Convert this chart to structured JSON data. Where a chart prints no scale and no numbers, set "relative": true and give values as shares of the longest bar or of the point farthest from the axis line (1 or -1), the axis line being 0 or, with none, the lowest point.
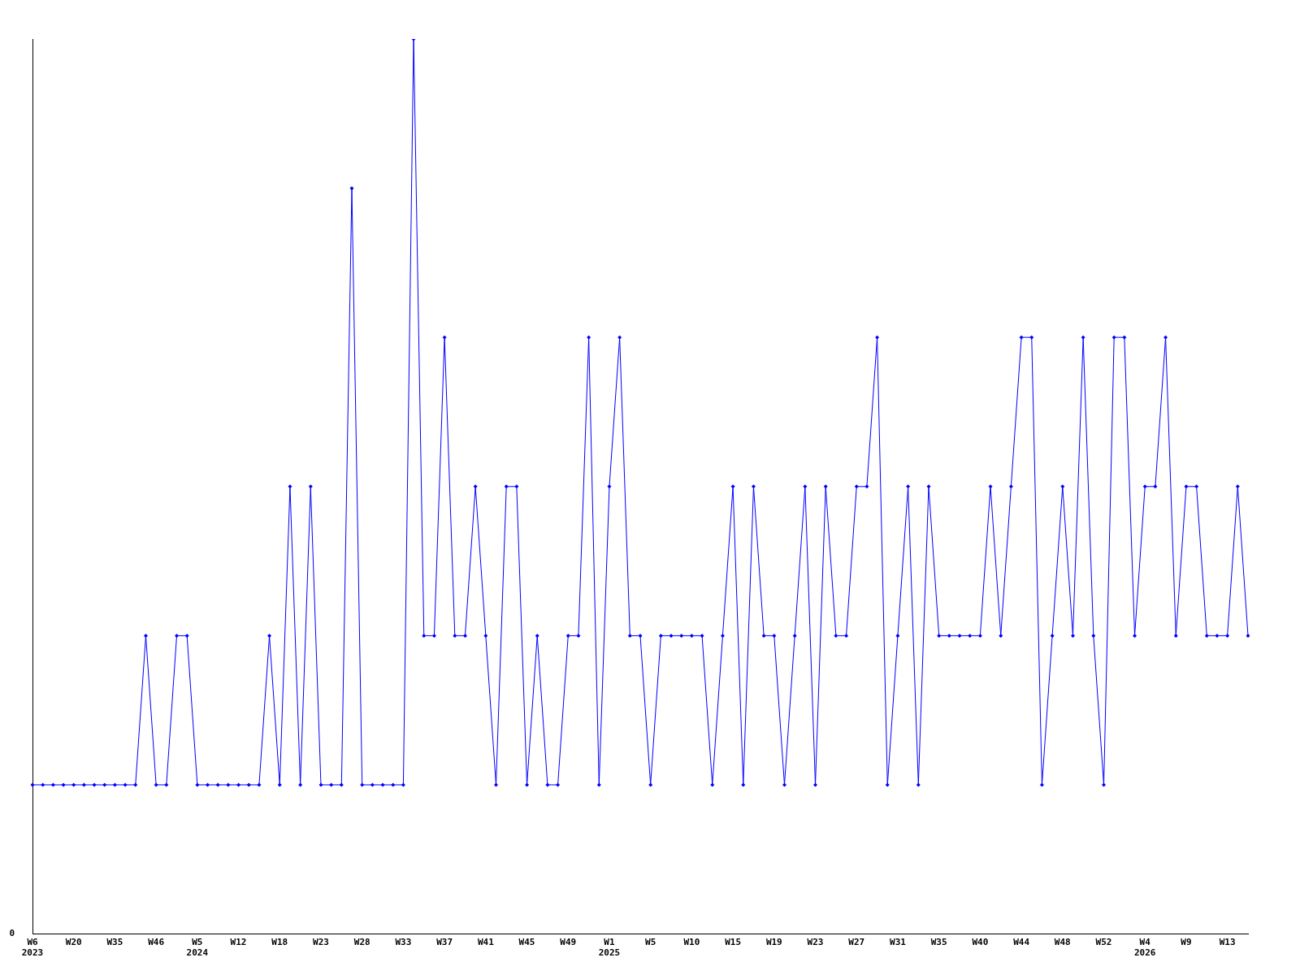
{
  "chart_data": {
    "type": "line",
    "relative": true,
    "categories": [
      "W6\n2023",
      null,
      null,
      null,
      "W20",
      null,
      null,
      null,
      "W35",
      null,
      null,
      null,
      "W46",
      null,
      null,
      null,
      "W5\n2024",
      null,
      null,
      null,
      "W12",
      null,
      null,
      null,
      "W18",
      null,
      null,
      null,
      "W23",
      null,
      null,
      null,
      "W28",
      null,
      null,
      null,
      "W33",
      null,
      null,
      null,
      "W37",
      null,
      null,
      null,
      "W41",
      null,
      null,
      null,
      "W45",
      null,
      null,
      null,
      "W49",
      null,
      null,
      null,
      "W1\n2025",
      null,
      null,
      null,
      "W5",
      null,
      null,
      null,
      "W10",
      null,
      null,
      null,
      "W15",
      null,
      null,
      null,
      "W19",
      null,
      null,
      null,
      "W23",
      null,
      null,
      null,
      "W27",
      null,
      null,
      null,
      "W31",
      null,
      null,
      null,
      "W35",
      null,
      null,
      null,
      "W40",
      null,
      null,
      null,
      "W44",
      null,
      null,
      null,
      "W48",
      null,
      null,
      null,
      "W52",
      null,
      null,
      null,
      "W4\n2026",
      null,
      null,
      null,
      "W9",
      null,
      null,
      null,
      "W13",
      null,
      null
    ],
    "series": [
      {
        "color": "#0000ff",
        "values": [
          0.1667,
          0.1667,
          0.1667,
          0.1667,
          0.1667,
          0.1667,
          0.1667,
          0.1667,
          0.1667,
          0.1667,
          0.1667,
          0.3333,
          0.1667,
          0.1667,
          0.3333,
          0.3333,
          0.1667,
          0.1667,
          0.1667,
          0.1667,
          0.1667,
          0.1667,
          0.1667,
          0.3333,
          0.1667,
          0.5,
          0.1667,
          0.5,
          0.1667,
          0.1667,
          0.1667,
          0.8333,
          0.1667,
          0.1667,
          0.1667,
          0.1667,
          0.1667,
          1,
          0.3333,
          0.3333,
          0.6667,
          0.3333,
          0.3333,
          0.5,
          0.3333,
          0.1667,
          0.5,
          0.5,
          0.1667,
          0.3333,
          0.1667,
          0.1667,
          0.3333,
          0.3333,
          0.6667,
          0.1667,
          0.5,
          0.6667,
          0.3333,
          0.3333,
          0.1667,
          0.3333,
          0.3333,
          0.3333,
          0.3333,
          0.3333,
          0.1667,
          0.3333,
          0.5,
          0.1667,
          0.5,
          0.3333,
          0.3333,
          0.1667,
          0.3333,
          0.5,
          0.1667,
          0.5,
          0.3333,
          0.3333,
          0.5,
          0.5,
          0.6667,
          0.1667,
          0.3333,
          0.5,
          0.1667,
          0.5,
          0.3333,
          0.3333,
          0.3333,
          0.3333,
          0.3333,
          0.5,
          0.3333,
          0.5,
          0.6667,
          0.6667,
          0.1667,
          0.3333,
          0.5,
          0.3333,
          0.6667,
          0.3333,
          0.1667,
          0.6667,
          0.6667,
          0.3333,
          0.5,
          0.5,
          0.6667,
          0.3333,
          0.5,
          0.5,
          0.3333,
          0.3333,
          0.3333,
          0.5,
          0.3333
        ]
      }
    ],
    "annotations": [
      "0"
    ],
    "grid": false,
    "legend": false,
    "marker": "diamond",
    "line_style": "solid"
  }
}
